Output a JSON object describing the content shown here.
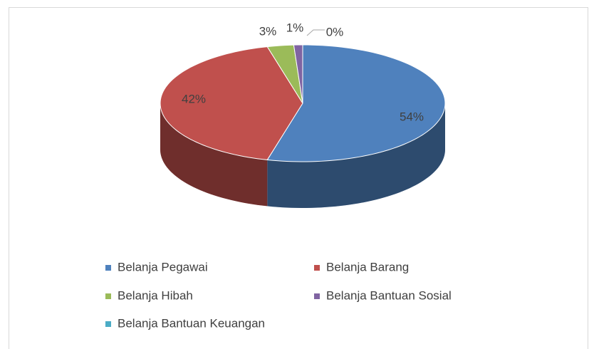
{
  "chart_data": {
    "type": "pie",
    "categories": [
      "Belanja Pegawai",
      "Belanja Barang",
      "Belanja Hibah",
      "Belanja Bantuan Sosial",
      "Belanja Bantuan Keuangan"
    ],
    "values": [
      54,
      42,
      3,
      1,
      0
    ],
    "value_labels": [
      "54%",
      "42%",
      "3%",
      "1%",
      "0%"
    ],
    "colors": [
      "#4f81bd",
      "#c0504d",
      "#9bbb59",
      "#8064a2",
      "#4bacc6"
    ],
    "legend": "bottom"
  }
}
